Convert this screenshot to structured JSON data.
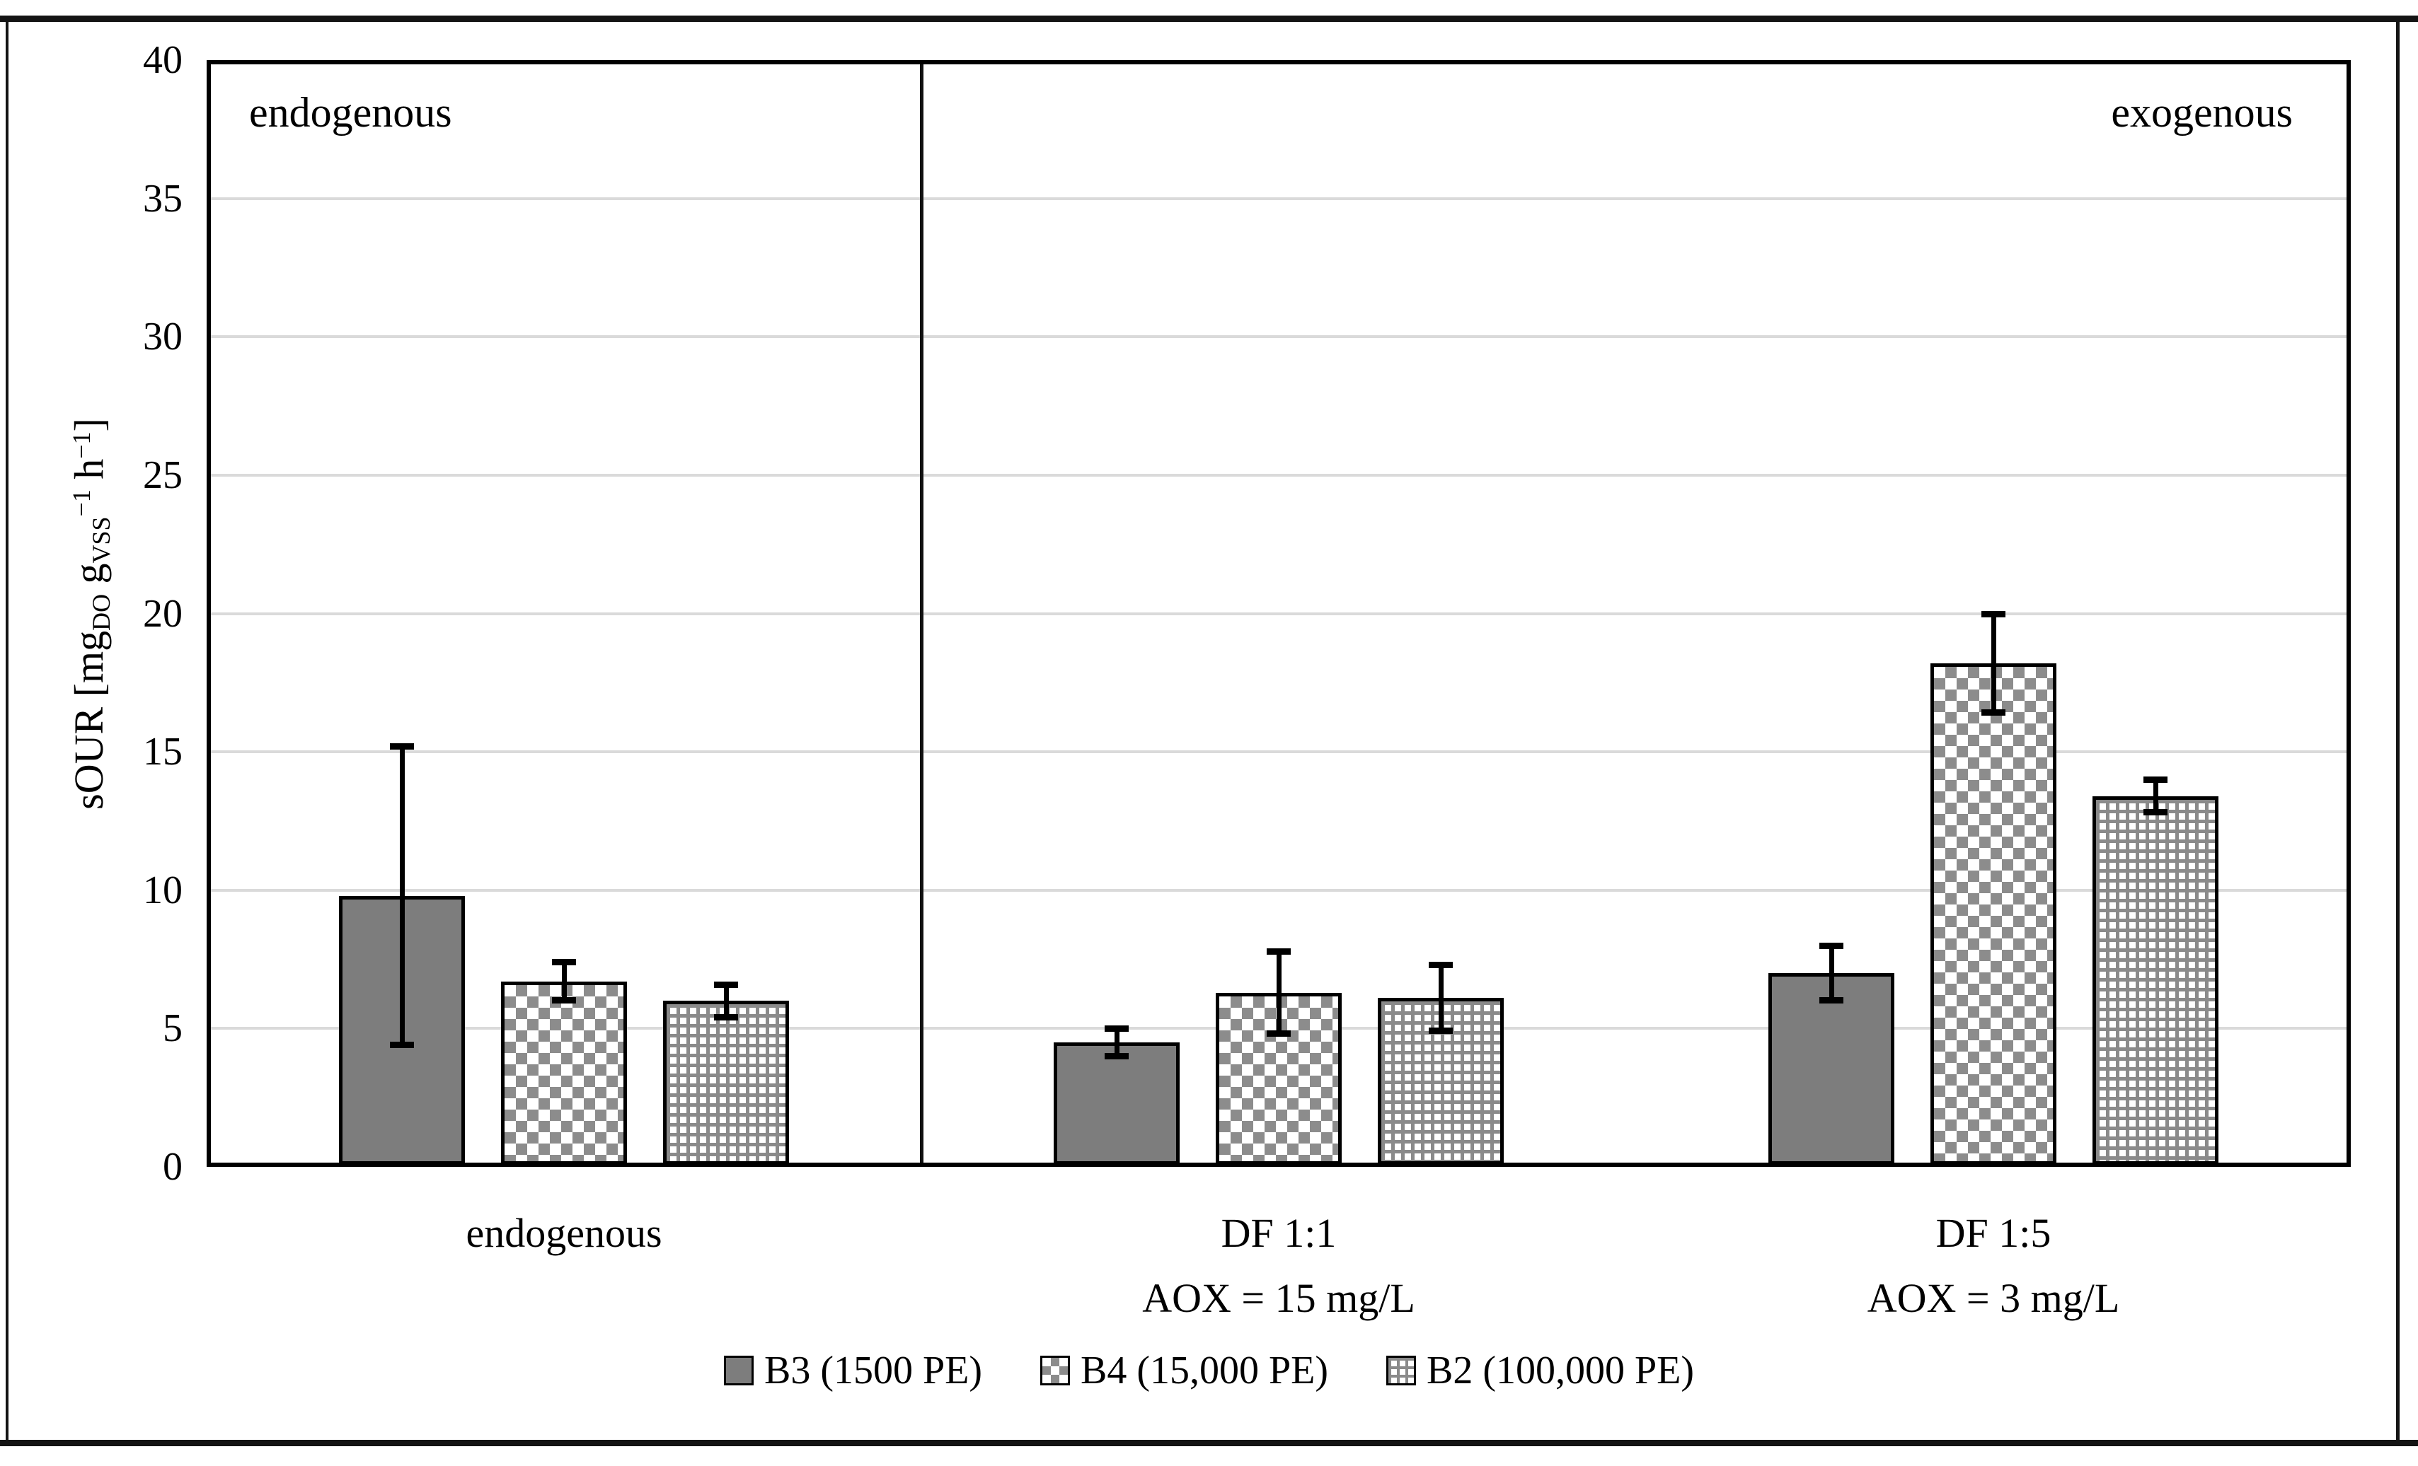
{
  "figure": {
    "type_note": "grouped bar chart with error bars, scanned journal figure framed by rules"
  },
  "chart_data": {
    "type": "bar",
    "title": "",
    "ylabel": "sOUR [mgDO gVSS-1 h-1]",
    "ylabel_parts": {
      "pre": "sOUR [mg",
      "sub1": "DO",
      "mid1": " g",
      "sub2": "VSS",
      "sup1": "−1",
      "mid2": " h",
      "sup2": "−1",
      "post": "]"
    },
    "ylim": [
      0,
      40
    ],
    "ytick_step": 5,
    "grid": "horizontal",
    "legend_position": "bottom",
    "categories": [
      {
        "line1": "endogenous",
        "line2": ""
      },
      {
        "line1": "DF 1:1",
        "line2": "AOX = 15 mg/L"
      },
      {
        "line1": "DF 1:5",
        "line2": "AOX = 3 mg/L"
      }
    ],
    "series": [
      {
        "name": "B3 (1500 PE)",
        "pattern": "solid",
        "values": [
          9.8,
          4.5,
          7.0
        ],
        "errors": [
          5.4,
          0.5,
          1.0
        ]
      },
      {
        "name": "B4 (15,000 PE)",
        "pattern": "checker",
        "values": [
          6.7,
          6.3,
          18.2
        ],
        "errors": [
          0.7,
          1.5,
          1.8
        ]
      },
      {
        "name": "B2 (100,000 PE)",
        "pattern": "grid",
        "values": [
          6.0,
          6.1,
          13.4
        ],
        "errors": [
          0.6,
          1.2,
          0.6
        ]
      }
    ],
    "annotations": [
      {
        "text": "endogenous",
        "position": "top-left"
      },
      {
        "text": "exogenous",
        "position": "top-right"
      }
    ],
    "divider_after_category": 0,
    "colors": {
      "bar_fill_gray": "#7d7d7d",
      "pattern_gray": "#8c8c8c",
      "gridline_gray": "#dadada",
      "outline_black": "#000000"
    }
  }
}
